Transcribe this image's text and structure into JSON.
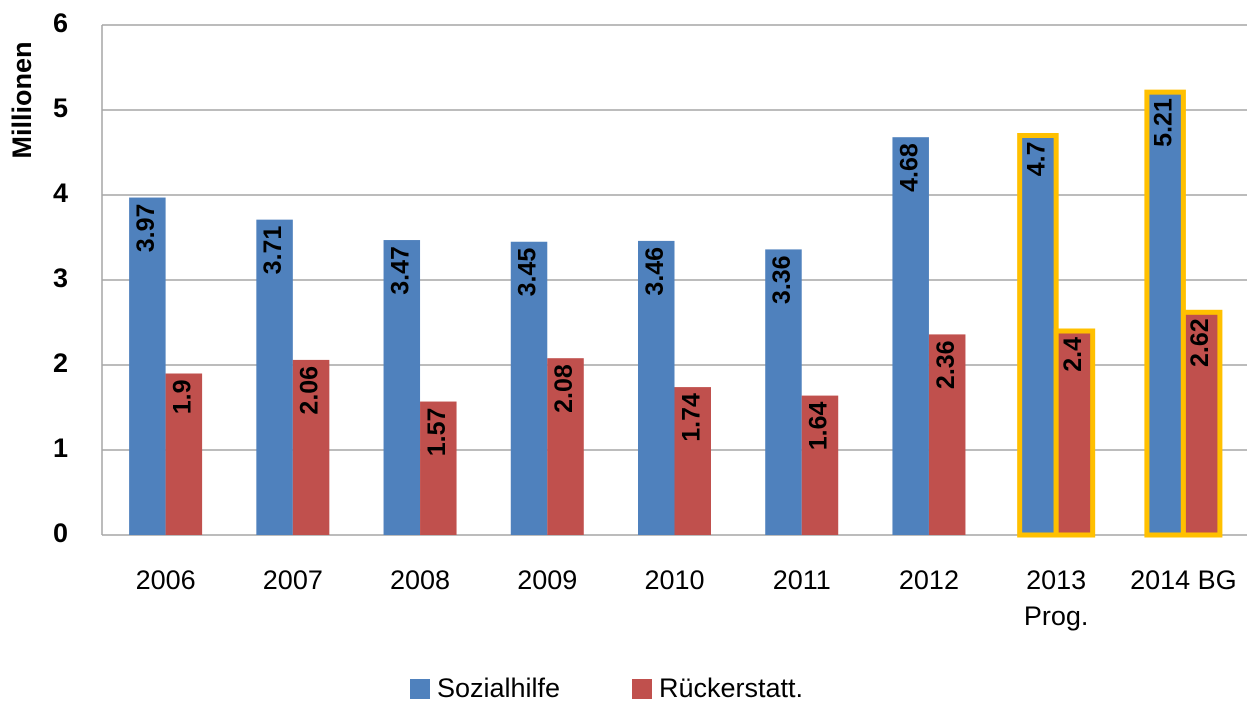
{
  "chart_data": {
    "type": "bar",
    "y_label": "Millionen",
    "categories": [
      "2006",
      "2007",
      "2008",
      "2009",
      "2010",
      "2011",
      "2012",
      "2013\nProg.",
      "2014 BG"
    ],
    "series": [
      {
        "name": "Sozialhilfe",
        "color": "#4f81bd",
        "values": [
          3.97,
          3.71,
          3.47,
          3.45,
          3.46,
          3.36,
          4.68,
          4.7,
          5.21
        ]
      },
      {
        "name": "Rückerstatt.",
        "color": "#c0504d",
        "values": [
          1.9,
          2.06,
          1.57,
          2.08,
          1.74,
          1.64,
          2.36,
          2.4,
          2.62
        ]
      }
    ],
    "ylim": [
      0,
      6
    ],
    "yticks": [
      0,
      1,
      2,
      3,
      4,
      5,
      6
    ],
    "grid": true,
    "highlight": [
      7,
      8
    ],
    "highlight_color": "#ffc000",
    "legend": "bottom"
  }
}
